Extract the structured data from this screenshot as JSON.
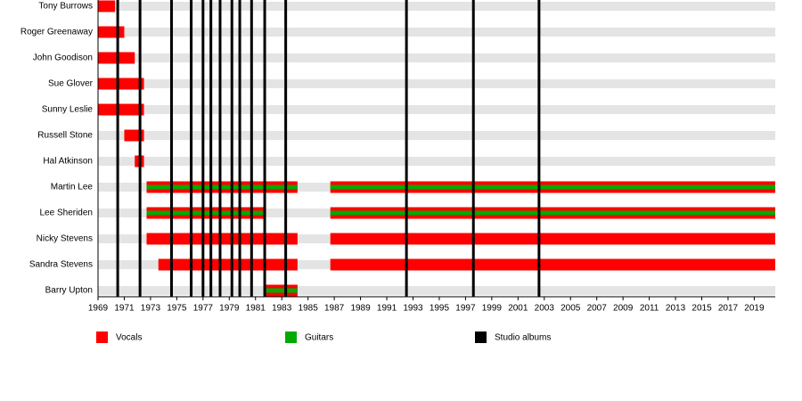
{
  "chart_data": {
    "type": "timeline",
    "xlim": [
      1969,
      2020.6
    ],
    "xticks": [
      1969,
      1971,
      1973,
      1975,
      1977,
      1979,
      1981,
      1983,
      1985,
      1987,
      1989,
      1991,
      1993,
      1995,
      1997,
      1999,
      2001,
      2003,
      2005,
      2007,
      2009,
      2011,
      2013,
      2015,
      2017,
      2019
    ],
    "roles": [
      {
        "name": "Vocals",
        "color": "#ff0000"
      },
      {
        "name": "Guitars",
        "color": "#00aa00"
      },
      {
        "name": "Studio albums",
        "color": "#000000"
      }
    ],
    "studio_albums": [
      1970.5,
      1972.2,
      1974.6,
      1976.1,
      1977.0,
      1977.6,
      1978.3,
      1979.2,
      1979.8,
      1980.7,
      1981.7,
      1983.3,
      1992.5,
      1997.6,
      2002.6
    ],
    "members": [
      {
        "name": "Tony Burrows",
        "periods": [
          {
            "start": 1969,
            "end": 1970.3,
            "guitar": false
          }
        ]
      },
      {
        "name": "Roger Greenaway",
        "periods": [
          {
            "start": 1969,
            "end": 1971.0,
            "guitar": false
          }
        ]
      },
      {
        "name": "John Goodison",
        "periods": [
          {
            "start": 1969,
            "end": 1971.8,
            "guitar": false
          }
        ]
      },
      {
        "name": "Sue Glover",
        "periods": [
          {
            "start": 1969,
            "end": 1972.5,
            "guitar": false
          }
        ]
      },
      {
        "name": "Sunny Leslie",
        "periods": [
          {
            "start": 1969,
            "end": 1972.5,
            "guitar": false
          }
        ]
      },
      {
        "name": "Russell Stone",
        "periods": [
          {
            "start": 1971.0,
            "end": 1972.5,
            "guitar": false
          }
        ]
      },
      {
        "name": "Hal Atkinson",
        "periods": [
          {
            "start": 1971.8,
            "end": 1972.5,
            "guitar": false
          }
        ]
      },
      {
        "name": "Martin Lee",
        "periods": [
          {
            "start": 1972.7,
            "end": 1984.2,
            "guitar": true
          },
          {
            "start": 1986.7,
            "end": 2020.6,
            "guitar": true
          }
        ]
      },
      {
        "name": "Lee Sheriden",
        "periods": [
          {
            "start": 1972.7,
            "end": 1981.8,
            "guitar": true
          },
          {
            "start": 1986.7,
            "end": 2020.6,
            "guitar": true
          }
        ]
      },
      {
        "name": "Nicky Stevens",
        "periods": [
          {
            "start": 1972.7,
            "end": 1984.2,
            "guitar": false
          },
          {
            "start": 1986.7,
            "end": 2020.6,
            "guitar": false
          }
        ]
      },
      {
        "name": "Sandra Stevens",
        "periods": [
          {
            "start": 1973.6,
            "end": 1984.2,
            "guitar": false
          },
          {
            "start": 1986.7,
            "end": 2020.6,
            "guitar": false
          }
        ]
      },
      {
        "name": "Barry Upton",
        "periods": [
          {
            "start": 1981.8,
            "end": 1984.2,
            "guitar": true
          }
        ]
      }
    ]
  }
}
